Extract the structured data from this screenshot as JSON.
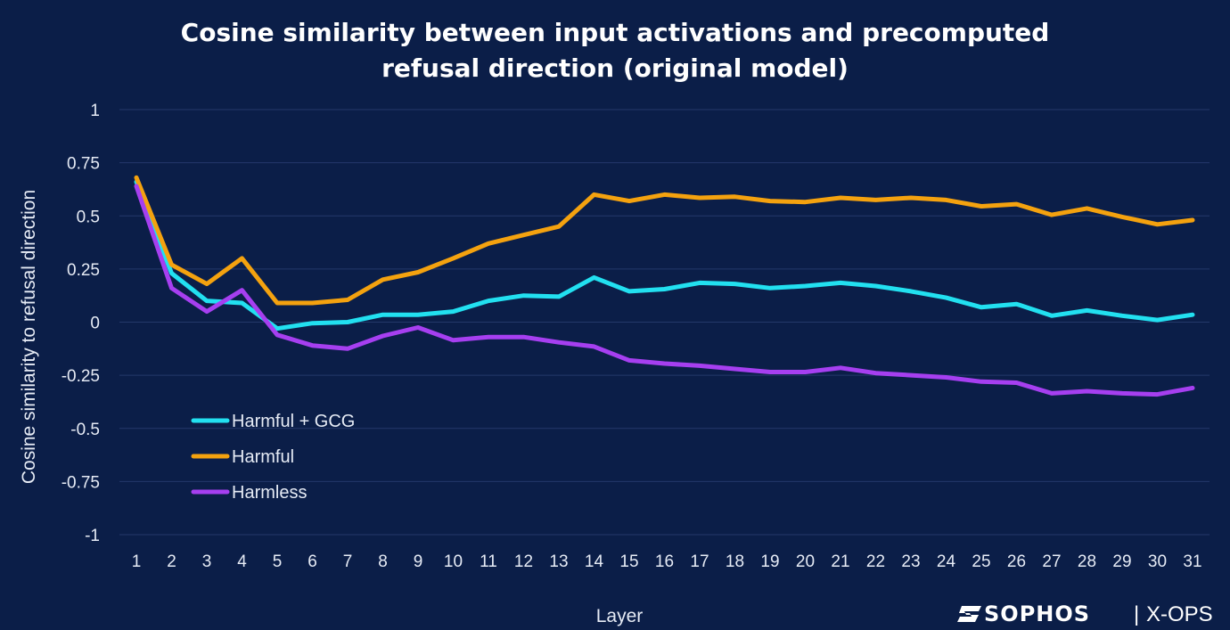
{
  "chart_data": {
    "type": "line",
    "title_lines": [
      "Cosine similarity between input activations and precomputed",
      "refusal direction (original model)"
    ],
    "xlabel": "Layer",
    "ylabel": "Cosine similarity to refusal direction",
    "ylim": [
      -1,
      1
    ],
    "yticks": [
      1,
      0.75,
      0.5,
      0.25,
      0,
      -0.25,
      -0.5,
      -0.75,
      -1
    ],
    "ytick_labels": [
      "1",
      "0.75",
      "0.5",
      "0.25",
      "0",
      "-0.25",
      "-0.5",
      "-0.75",
      "-1"
    ],
    "x": [
      1,
      2,
      3,
      4,
      5,
      6,
      7,
      8,
      9,
      10,
      11,
      12,
      13,
      14,
      15,
      16,
      17,
      18,
      19,
      20,
      21,
      22,
      23,
      24,
      25,
      26,
      27,
      28,
      29,
      30,
      31
    ],
    "grid": "horizontal",
    "legend_position": "lower-left",
    "series": [
      {
        "name": "Harmful + GCG",
        "color": "#22e0f0",
        "values": [
          0.66,
          0.23,
          0.1,
          0.09,
          -0.03,
          -0.005,
          0.0,
          0.035,
          0.035,
          0.05,
          0.1,
          0.125,
          0.12,
          0.21,
          0.145,
          0.155,
          0.185,
          0.18,
          0.16,
          0.17,
          0.185,
          0.17,
          0.145,
          0.115,
          0.07,
          0.085,
          0.03,
          0.055,
          0.03,
          0.01,
          0.035
        ]
      },
      {
        "name": "Harmful",
        "color": "#f4a20f",
        "values": [
          0.68,
          0.27,
          0.18,
          0.3,
          0.09,
          0.09,
          0.105,
          0.2,
          0.235,
          0.3,
          0.37,
          0.41,
          0.45,
          0.6,
          0.57,
          0.6,
          0.585,
          0.59,
          0.57,
          0.565,
          0.585,
          0.575,
          0.585,
          0.575,
          0.545,
          0.555,
          0.505,
          0.535,
          0.495,
          0.46,
          0.48
        ]
      },
      {
        "name": "Harmless",
        "color": "#a63ff0",
        "values": [
          0.64,
          0.16,
          0.05,
          0.15,
          -0.06,
          -0.11,
          -0.125,
          -0.065,
          -0.025,
          -0.085,
          -0.07,
          -0.07,
          -0.095,
          -0.115,
          -0.18,
          -0.195,
          -0.205,
          -0.22,
          -0.235,
          -0.235,
          -0.215,
          -0.24,
          -0.25,
          -0.26,
          -0.28,
          -0.285,
          -0.335,
          -0.325,
          -0.335,
          -0.34,
          -0.31
        ]
      }
    ]
  },
  "branding": {
    "logo_name": "SOPHOS",
    "logo_separator": "|",
    "logo_product": "X-OPS",
    "logo_icon": "sophos-mark-icon"
  }
}
